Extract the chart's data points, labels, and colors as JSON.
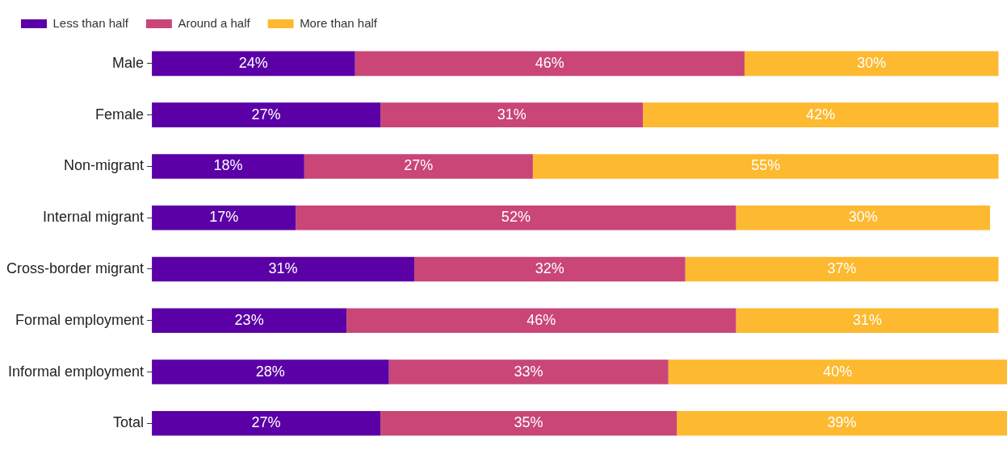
{
  "chart_data": {
    "type": "bar",
    "orientation": "horizontal",
    "stacked": true,
    "legend": "top left",
    "grid": false,
    "categories": [
      "Male",
      "Female",
      "Non-migrant",
      "Internal migrant",
      "Cross-border migrant",
      "Formal employment",
      "Informal employment",
      "Total"
    ],
    "series": [
      {
        "name": "Less than half",
        "color": "#5a00a6",
        "values": [
          24,
          27,
          18,
          17,
          31,
          23,
          28,
          27
        ],
        "value_labels": [
          "24%",
          "27%",
          "18%",
          "17%",
          "31%",
          "23%",
          "28%",
          "27%"
        ]
      },
      {
        "name": "Around a half",
        "color": "#c94677",
        "values": [
          46,
          31,
          27,
          52,
          32,
          46,
          33,
          35
        ],
        "value_labels": [
          "46%",
          "31%",
          "27%",
          "52%",
          "32%",
          "46%",
          "33%",
          "35%"
        ]
      },
      {
        "name": "More than half",
        "color": "#fdb92f",
        "values": [
          30,
          42,
          55,
          30,
          37,
          31,
          40,
          39
        ],
        "value_labels": [
          "30%",
          "42%",
          "55%",
          "30%",
          "37%",
          "31%",
          "40%",
          "39%"
        ]
      }
    ]
  }
}
